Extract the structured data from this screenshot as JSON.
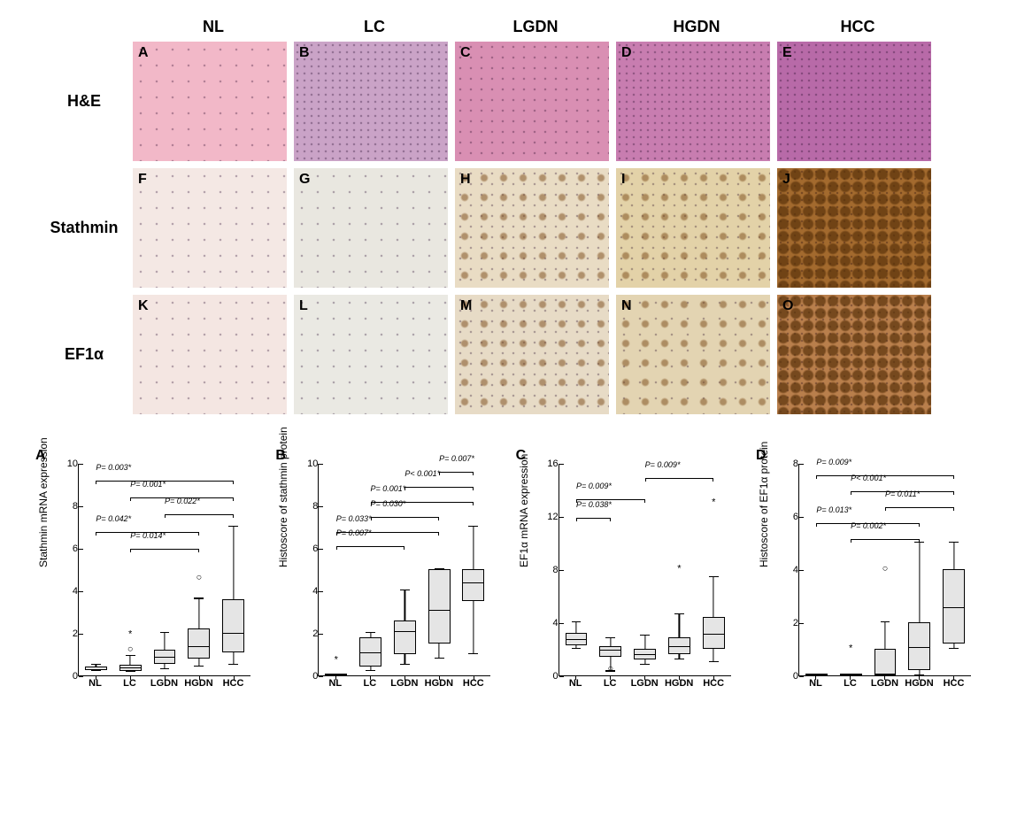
{
  "columns": [
    "NL",
    "LC",
    "LGDN",
    "HGDN",
    "HCC"
  ],
  "rows": [
    "H&E",
    "Stathmin",
    "EF1α"
  ],
  "tiles": [
    [
      {
        "letter": "A",
        "bg": "#f2b8c8",
        "speckle": "sparse"
      },
      {
        "letter": "B",
        "bg": "#caa3c7",
        "speckle": "dense"
      },
      {
        "letter": "C",
        "bg": "#d98fb3",
        "speckle": "normal"
      },
      {
        "letter": "D",
        "bg": "#c87db0",
        "speckle": "dense"
      },
      {
        "letter": "E",
        "bg": "#b86aa8",
        "speckle": "dense"
      }
    ],
    [
      {
        "letter": "F",
        "bg": "#f4e8e4",
        "speckle": "sparse"
      },
      {
        "letter": "G",
        "bg": "#e9e7e0",
        "speckle": "sparse"
      },
      {
        "letter": "H",
        "bg": "#e9dcc4",
        "speckle": "normal",
        "brown": "light"
      },
      {
        "letter": "I",
        "bg": "#e3d2a8",
        "speckle": "normal",
        "brown": "light"
      },
      {
        "letter": "J",
        "bg": "#a36a2e",
        "speckle": "dense",
        "brown": "heavy"
      }
    ],
    [
      {
        "letter": "K",
        "bg": "#f4e6e2",
        "speckle": "sparse"
      },
      {
        "letter": "L",
        "bg": "#eae9e3",
        "speckle": "sparse"
      },
      {
        "letter": "M",
        "bg": "#e7dbc6",
        "speckle": "normal",
        "brown": "light"
      },
      {
        "letter": "N",
        "bg": "#e3d4b2",
        "speckle": "sparse",
        "brown": "light"
      },
      {
        "letter": "O",
        "bg": "#b97f4c",
        "speckle": "dense",
        "brown": "heavy"
      }
    ]
  ],
  "charts": [
    {
      "letter": "A",
      "ylabel": "Stathmin mRNA expression",
      "ymax": 10,
      "ytick_step": 2,
      "box_fill": "#e5e5e5",
      "categories": [
        "NL",
        "LC",
        "LGDN",
        "HGDN",
        "HCC"
      ],
      "boxes": [
        {
          "q1": 0.25,
          "med": 0.32,
          "q3": 0.42,
          "lo": 0.2,
          "hi": 0.5
        },
        {
          "q1": 0.22,
          "med": 0.28,
          "q3": 0.5,
          "lo": 0.18,
          "hi": 0.9,
          "outliers": [
            {
              "v": 1.2,
              "m": "○"
            },
            {
              "v": 1.9,
              "m": "*"
            }
          ]
        },
        {
          "q1": 0.55,
          "med": 0.8,
          "q3": 1.2,
          "lo": 0.3,
          "hi": 2.0
        },
        {
          "q1": 0.8,
          "med": 1.3,
          "q3": 2.2,
          "lo": 0.4,
          "hi": 3.6,
          "outliers": [
            {
              "v": 4.6,
              "m": "○"
            }
          ]
        },
        {
          "q1": 1.1,
          "med": 1.9,
          "q3": 3.6,
          "lo": 0.5,
          "hi": 7.0
        }
      ],
      "sig": [
        {
          "from": 0,
          "to": 4,
          "y": 9.0,
          "label": "P= 0.003*"
        },
        {
          "from": 1,
          "to": 4,
          "y": 8.2,
          "label": "P= 0.001*"
        },
        {
          "from": 2,
          "to": 4,
          "y": 7.4,
          "label": "P= 0.022*"
        },
        {
          "from": 0,
          "to": 3,
          "y": 6.6,
          "label": "P= 0.042*"
        },
        {
          "from": 1,
          "to": 3,
          "y": 5.8,
          "label": "P= 0.014*"
        }
      ]
    },
    {
      "letter": "B",
      "ylabel": "Histoscore of stathmin protein",
      "ymax": 10,
      "ytick_step": 2,
      "box_fill": "#e5e5e5",
      "categories": [
        "NL",
        "LC",
        "LGDN",
        "HGDN",
        "HCC"
      ],
      "boxes": [
        {
          "q1": 0.0,
          "med": 0.0,
          "q3": 0.0,
          "lo": 0.0,
          "hi": 0.0,
          "outliers": [
            {
              "v": 0.7,
              "m": "*"
            }
          ]
        },
        {
          "q1": 0.4,
          "med": 1.0,
          "q3": 1.8,
          "lo": 0.2,
          "hi": 2.0
        },
        {
          "q1": 1.0,
          "med": 2.0,
          "q3": 2.6,
          "lo": 0.5,
          "hi": 4.0
        },
        {
          "q1": 1.5,
          "med": 3.0,
          "q3": 5.0,
          "lo": 0.8,
          "hi": 5.0
        },
        {
          "q1": 3.5,
          "med": 4.3,
          "q3": 5.0,
          "lo": 1.0,
          "hi": 7.0
        }
      ],
      "sig": [
        {
          "from": 3,
          "to": 4,
          "y": 9.4,
          "label": "P= 0.007*"
        },
        {
          "from": 2,
          "to": 4,
          "y": 8.7,
          "label": "P< 0.001*"
        },
        {
          "from": 1,
          "to": 4,
          "y": 8.0,
          "label": "P= 0.001*"
        },
        {
          "from": 1,
          "to": 3,
          "y": 7.3,
          "label": "P= 0.030*"
        },
        {
          "from": 0,
          "to": 3,
          "y": 6.6,
          "label": "P= 0.033*"
        },
        {
          "from": 0,
          "to": 2,
          "y": 5.9,
          "label": "P= 0.007*"
        }
      ]
    },
    {
      "letter": "C",
      "ylabel": "EF1α mRNA expression",
      "ymax": 16,
      "ytick_step": 4,
      "box_fill": "#e5e5e5",
      "categories": [
        "NL",
        "LC",
        "LGDN",
        "HGDN",
        "HCC"
      ],
      "boxes": [
        {
          "q1": 2.3,
          "med": 2.6,
          "q3": 3.2,
          "lo": 2.0,
          "hi": 4.0
        },
        {
          "q1": 1.4,
          "med": 1.8,
          "q3": 2.2,
          "lo": 0.3,
          "hi": 2.8,
          "outliers": [
            {
              "v": 0.5,
              "m": "○"
            }
          ]
        },
        {
          "q1": 1.2,
          "med": 1.5,
          "q3": 2.0,
          "lo": 0.8,
          "hi": 3.0
        },
        {
          "q1": 1.6,
          "med": 2.1,
          "q3": 2.9,
          "lo": 1.2,
          "hi": 4.6,
          "outliers": [
            {
              "v": 8.0,
              "m": "*"
            }
          ]
        },
        {
          "q1": 2.0,
          "med": 3.0,
          "q3": 4.4,
          "lo": 1.0,
          "hi": 7.4,
          "outliers": [
            {
              "v": 13.0,
              "m": "*"
            }
          ]
        }
      ],
      "sig": [
        {
          "from": 2,
          "to": 4,
          "y": 14.6,
          "label": "P= 0.009*"
        },
        {
          "from": 0,
          "to": 2,
          "y": 13.0,
          "label": "P= 0.009*"
        },
        {
          "from": 0,
          "to": 1,
          "y": 11.6,
          "label": "P= 0.038*"
        }
      ]
    },
    {
      "letter": "D",
      "ylabel": "Histoscore of EF1α protein",
      "ymax": 8,
      "ytick_step": 2,
      "box_fill": "#e5e5e5",
      "categories": [
        "NL",
        "LC",
        "LGDN",
        "HGDN",
        "HCC"
      ],
      "boxes": [
        {
          "q1": 0.0,
          "med": 0.0,
          "q3": 0.0,
          "lo": 0.0,
          "hi": 0.0
        },
        {
          "q1": 0.0,
          "med": 0.0,
          "q3": 0.0,
          "lo": 0.0,
          "hi": 0.0,
          "outliers": [
            {
              "v": 1.0,
              "m": "*"
            }
          ]
        },
        {
          "q1": 0.0,
          "med": 0.0,
          "q3": 1.0,
          "lo": 0.0,
          "hi": 2.0,
          "outliers": [
            {
              "v": 4.0,
              "m": "○"
            }
          ]
        },
        {
          "q1": 0.2,
          "med": 1.0,
          "q3": 2.0,
          "lo": 0.0,
          "hi": 5.0
        },
        {
          "q1": 1.2,
          "med": 2.5,
          "q3": 4.0,
          "lo": 1.0,
          "hi": 5.0
        }
      ],
      "sig": [
        {
          "from": 0,
          "to": 4,
          "y": 7.4,
          "label": "P= 0.009*"
        },
        {
          "from": 1,
          "to": 4,
          "y": 6.8,
          "label": "P< 0.001*"
        },
        {
          "from": 2,
          "to": 4,
          "y": 6.2,
          "label": "P= 0.011*"
        },
        {
          "from": 0,
          "to": 3,
          "y": 5.6,
          "label": "P= 0.013*"
        },
        {
          "from": 1,
          "to": 3,
          "y": 5.0,
          "label": "P= 0.002*"
        }
      ]
    }
  ]
}
